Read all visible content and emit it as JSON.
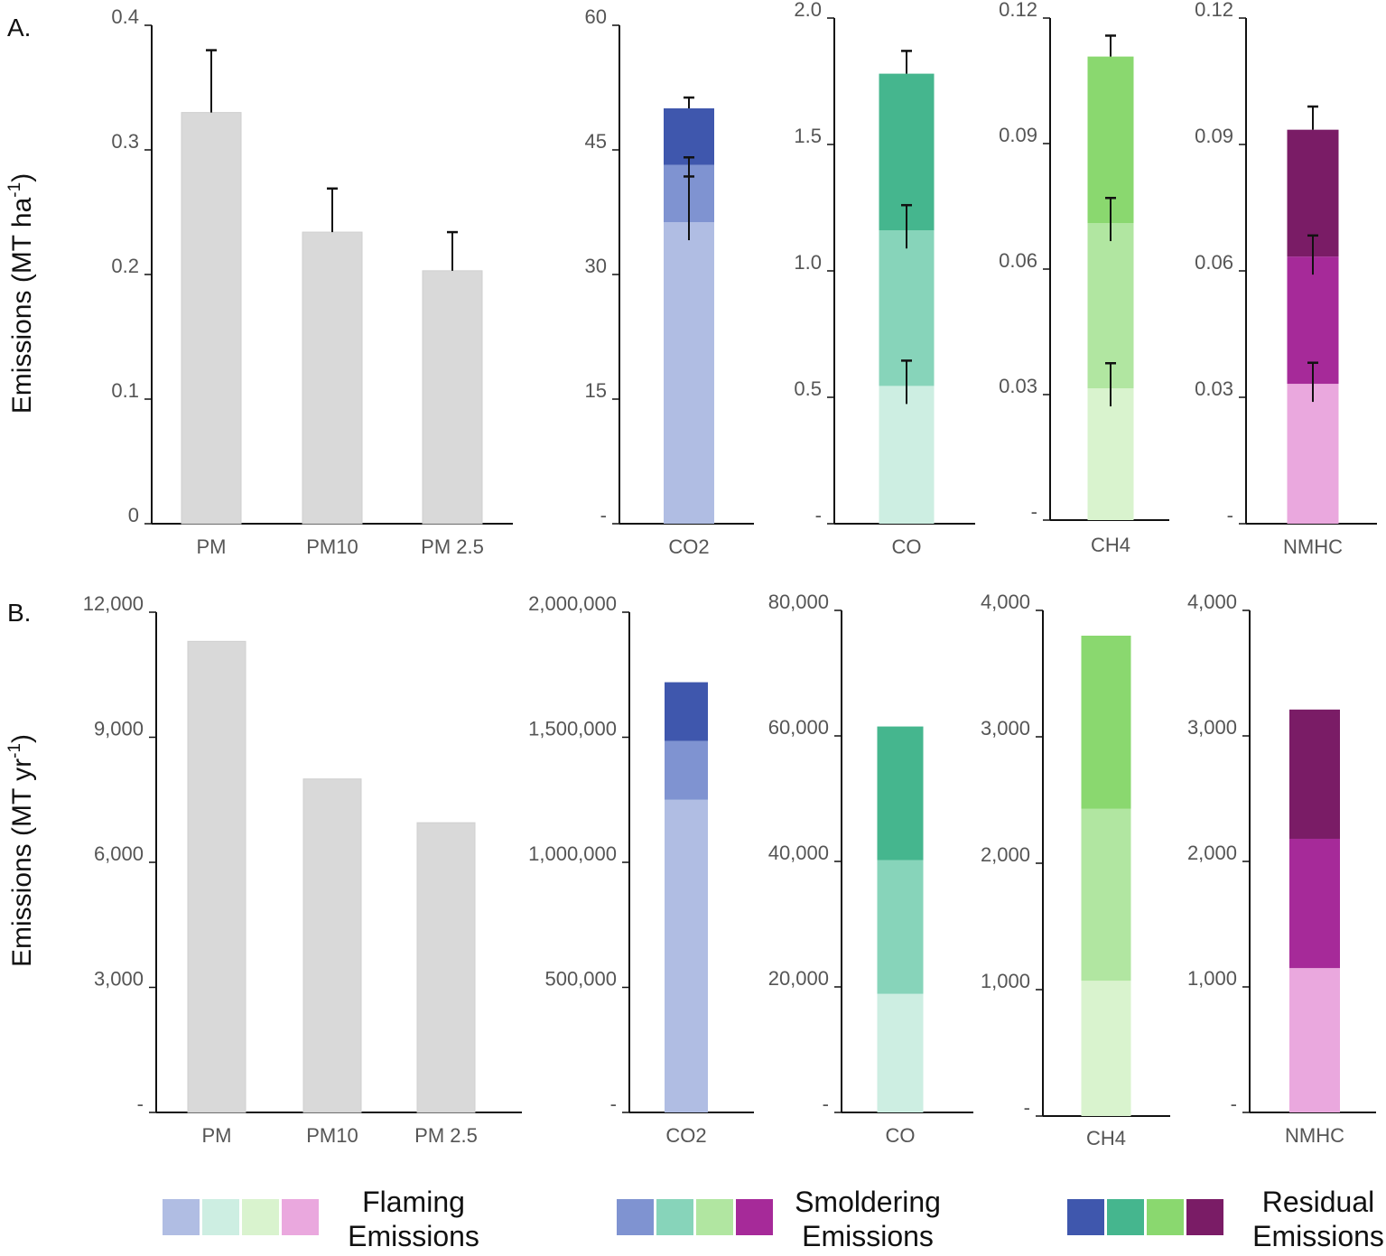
{
  "colors": {
    "gray": "#d9d9d9",
    "axis": "#111111",
    "co2": [
      "#b0bde3",
      "#7f93d1",
      "#3f57ad"
    ],
    "co": [
      "#cdeee2",
      "#87d4ba",
      "#45b68e"
    ],
    "ch4": [
      "#d9f3ce",
      "#b1e6a1",
      "#8ad86f"
    ],
    "nmhc": [
      "#eaa8de",
      "#a62a99",
      "#7a1c66"
    ]
  },
  "panels": {
    "A": {
      "letter": "A.",
      "ylabel": "Emissions (MT ha",
      "ylabel_sup": "-1",
      "ylabel_end": ")"
    },
    "B": {
      "letter": "B.",
      "ylabel": "Emissions (MT yr",
      "ylabel_sup": "-1",
      "ylabel_end": ")"
    }
  },
  "legend": [
    {
      "line1": "Flaming",
      "line2": "Emissions",
      "colors": [
        "#b0bde3",
        "#cdeee2",
        "#d9f3ce",
        "#eaa8de"
      ]
    },
    {
      "line1": "Smoldering",
      "line2": "Emissions",
      "colors": [
        "#7f93d1",
        "#87d4ba",
        "#b1e6a1",
        "#a62a99"
      ]
    },
    {
      "line1": "Residual",
      "line2": "Emissions",
      "colors": [
        "#3f57ad",
        "#45b68e",
        "#8ad86f",
        "#7a1c66"
      ]
    }
  ],
  "chart_data": [
    {
      "panel": "A",
      "type": "bar",
      "categories": [
        "PM",
        "PM10",
        "PM 2.5"
      ],
      "values": [
        0.33,
        0.234,
        0.203
      ],
      "errors": [
        0.05,
        0.035,
        0.031
      ],
      "ylim": [
        0,
        0.4
      ],
      "yticks": [
        "0",
        "0.1",
        "0.2",
        "0.3",
        "0.4"
      ],
      "ylabel": "Emissions (MT ha-1)"
    },
    {
      "panel": "A",
      "type": "stacked-bar",
      "categories": [
        "CO2"
      ],
      "stack": [
        36.3,
        6.9,
        6.8
      ],
      "errors": [
        5.5,
        0.9,
        1.3
      ],
      "ylim": [
        0,
        60
      ],
      "yticks": [
        "-",
        "15",
        "30",
        "45",
        "60"
      ],
      "colorKey": "co2"
    },
    {
      "panel": "A",
      "type": "stacked-bar",
      "categories": [
        "CO"
      ],
      "stack": [
        0.545,
        0.615,
        0.62
      ],
      "errors": [
        0.1,
        0.1,
        0.09
      ],
      "ylim": [
        0,
        2.0
      ],
      "yticks": [
        "-",
        "0.5",
        "1.0",
        "1.5",
        "2.0"
      ],
      "colorKey": "co"
    },
    {
      "panel": "A",
      "type": "stacked-bar",
      "categories": [
        "CH4"
      ],
      "stack": [
        0.0315,
        0.0395,
        0.0398
      ],
      "errors": [
        0.006,
        0.006,
        0.005
      ],
      "ylim": [
        0,
        0.12
      ],
      "yticks": [
        "-",
        "0.03",
        "0.06",
        "0.09",
        "0.12"
      ],
      "colorKey": "ch4"
    },
    {
      "panel": "A",
      "type": "stacked-bar",
      "categories": [
        "NMHC"
      ],
      "stack": [
        0.0332,
        0.0302,
        0.0301
      ],
      "errors": [
        0.005,
        0.005,
        0.0055
      ],
      "ylim": [
        0,
        0.12
      ],
      "yticks": [
        "-",
        "0.03",
        "0.06",
        "0.09",
        "0.12"
      ],
      "colorKey": "nmhc"
    },
    {
      "panel": "B",
      "type": "bar",
      "categories": [
        "PM",
        "PM10",
        "PM 2.5"
      ],
      "values": [
        11300,
        8000,
        6950
      ],
      "ylim": [
        0,
        12000
      ],
      "yticks": [
        "-",
        "3,000",
        "6,000",
        "9,000",
        "12,000"
      ],
      "ylabel": "Emissions (MT yr-1)"
    },
    {
      "panel": "B",
      "type": "stacked-bar",
      "categories": [
        "CO2"
      ],
      "stack": [
        1250000,
        235000,
        235000
      ],
      "ylim": [
        0,
        2000000
      ],
      "yticks": [
        "-",
        "500,000",
        "1,000,000",
        "1,500,000",
        "2,000,000"
      ],
      "colorKey": "co2"
    },
    {
      "panel": "B",
      "type": "stacked-bar",
      "categories": [
        "CO"
      ],
      "stack": [
        18900,
        21300,
        21300
      ],
      "ylim": [
        0,
        80000
      ],
      "yticks": [
        "-",
        "20,000",
        "40,000",
        "60,000",
        "80,000"
      ],
      "colorKey": "co"
    },
    {
      "panel": "B",
      "type": "stacked-bar",
      "categories": [
        "CH4"
      ],
      "stack": [
        1070,
        1360,
        1370
      ],
      "ylim": [
        0,
        4000
      ],
      "yticks": [
        "-",
        "1,000",
        "2,000",
        "3,000",
        "4,000"
      ],
      "colorKey": "ch4"
    },
    {
      "panel": "B",
      "type": "stacked-bar",
      "categories": [
        "NMHC"
      ],
      "stack": [
        1150,
        1030,
        1030
      ],
      "ylim": [
        0,
        4000
      ],
      "yticks": [
        "-",
        "1,000",
        "2,000",
        "3,000",
        "4,000"
      ],
      "colorKey": "nmhc"
    }
  ]
}
